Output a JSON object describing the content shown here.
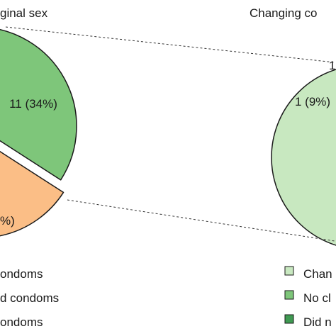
{
  "colors": {
    "light_green": "#c8e8c0",
    "mid_green": "#7ec67a",
    "dark_green": "#3f9a52",
    "peach": "#fbbe86",
    "outline": "#1a1a1a",
    "connector": "#333333"
  },
  "chart_data": [
    {
      "type": "pie",
      "title": "ginal sex",
      "slices": [
        {
          "label": "11 (34%)",
          "value": 34,
          "color": "#7ec67a"
        },
        {
          "label": "%)",
          "value": 25,
          "color": "#fbbe86"
        }
      ],
      "legend": [
        {
          "label": "ondoms"
        },
        {
          "label": "d condoms"
        },
        {
          "label": "ondoms"
        }
      ]
    },
    {
      "type": "pie",
      "title": "Changing co",
      "slices": [
        {
          "label": "1 (9%)",
          "value": 9,
          "color": "#7ec67a"
        },
        {
          "label": "1",
          "value": 9,
          "color": "#3f9a52"
        },
        {
          "label": "",
          "value": 82,
          "color": "#c8e8c0"
        }
      ],
      "legend": [
        {
          "label": "Chan",
          "color": "#c8e8c0"
        },
        {
          "label": "No cl",
          "color": "#7ec67a"
        },
        {
          "label": "Did n",
          "color": "#3f9a52"
        }
      ]
    }
  ]
}
